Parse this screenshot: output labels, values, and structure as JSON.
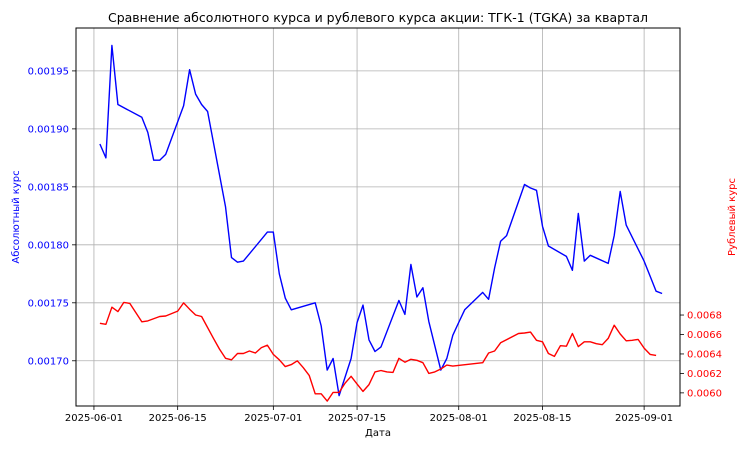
{
  "chart_data": {
    "type": "line",
    "title": "Сравнение абсолютного курса и рублевого курса акции: ТГК-1 (TGKA) за квартал",
    "xlabel": "Дата",
    "ylabel_left": "Абсолютный курс",
    "ylabel_right": "Рублевый курс",
    "x_ticks": [
      "2025-06-01",
      "2025-06-15",
      "2025-07-01",
      "2025-07-15",
      "2025-08-01",
      "2025-08-15",
      "2025-09-01"
    ],
    "y_left_ticks": [
      "0.00170",
      "0.00175",
      "0.00180",
      "0.00185",
      "0.00190",
      "0.00195"
    ],
    "y_right_ticks": [
      "0.0060",
      "0.0062",
      "0.0064",
      "0.0066",
      "0.0068"
    ],
    "x_range": [
      "2025-05-29",
      "2025-09-07"
    ],
    "ylim_left": [
      0.001661,
      0.001987
    ],
    "ylim_right": [
      0.005865,
      0.00975
    ],
    "grid": true,
    "colors": {
      "left_series": "#0000ff",
      "right_series": "#ff0000",
      "grid": "#b0b0b0"
    },
    "series": [
      {
        "axis": "left",
        "color": "#0000ff",
        "points": [
          [
            "2025-06-02",
            0.001887
          ],
          [
            "2025-06-03",
            0.001875
          ],
          [
            "2025-06-04",
            0.001972
          ],
          [
            "2025-06-05",
            0.001921
          ],
          [
            "2025-06-09",
            0.00191
          ],
          [
            "2025-06-10",
            0.001897
          ],
          [
            "2025-06-11",
            0.001873
          ],
          [
            "2025-06-12",
            0.001873
          ],
          [
            "2025-06-13",
            0.001878
          ],
          [
            "2025-06-16",
            0.00192
          ],
          [
            "2025-06-17",
            0.001951
          ],
          [
            "2025-06-18",
            0.00193
          ],
          [
            "2025-06-19",
            0.001921
          ],
          [
            "2025-06-20",
            0.001915
          ],
          [
            "2025-06-23",
            0.001833
          ],
          [
            "2025-06-24",
            0.001789
          ],
          [
            "2025-06-25",
            0.001785
          ],
          [
            "2025-06-26",
            0.001786
          ],
          [
            "2025-06-30",
            0.001811
          ],
          [
            "2025-07-01",
            0.001811
          ],
          [
            "2025-07-02",
            0.001775
          ],
          [
            "2025-07-03",
            0.001754
          ],
          [
            "2025-07-04",
            0.001744
          ],
          [
            "2025-07-08",
            0.00175
          ],
          [
            "2025-07-09",
            0.00173
          ],
          [
            "2025-07-10",
            0.001692
          ],
          [
            "2025-07-11",
            0.001702
          ],
          [
            "2025-07-12",
            0.00167
          ],
          [
            "2025-07-14",
            0.001702
          ],
          [
            "2025-07-15",
            0.001733
          ],
          [
            "2025-07-16",
            0.001748
          ],
          [
            "2025-07-17",
            0.001718
          ],
          [
            "2025-07-18",
            0.001708
          ],
          [
            "2025-07-19",
            0.001712
          ],
          [
            "2025-07-22",
            0.001752
          ],
          [
            "2025-07-23",
            0.00174
          ],
          [
            "2025-07-24",
            0.001783
          ],
          [
            "2025-07-25",
            0.001755
          ],
          [
            "2025-07-26",
            0.001763
          ],
          [
            "2025-07-27",
            0.001734
          ],
          [
            "2025-07-29",
            0.001692
          ],
          [
            "2025-07-30",
            0.001702
          ],
          [
            "2025-07-31",
            0.001722
          ],
          [
            "2025-08-01",
            0.001733
          ],
          [
            "2025-08-02",
            0.001744
          ],
          [
            "2025-08-05",
            0.001759
          ],
          [
            "2025-08-06",
            0.001753
          ],
          [
            "2025-08-07",
            0.00178
          ],
          [
            "2025-08-08",
            0.001803
          ],
          [
            "2025-08-09",
            0.001808
          ],
          [
            "2025-08-12",
            0.001852
          ],
          [
            "2025-08-13",
            0.001849
          ],
          [
            "2025-08-14",
            0.001847
          ],
          [
            "2025-08-15",
            0.001816
          ],
          [
            "2025-08-16",
            0.001799
          ],
          [
            "2025-08-19",
            0.00179
          ],
          [
            "2025-08-20",
            0.001778
          ],
          [
            "2025-08-21",
            0.001827
          ],
          [
            "2025-08-22",
            0.001786
          ],
          [
            "2025-08-23",
            0.001791
          ],
          [
            "2025-08-26",
            0.001784
          ],
          [
            "2025-08-27",
            0.001808
          ],
          [
            "2025-08-28",
            0.001846
          ],
          [
            "2025-08-29",
            0.001817
          ],
          [
            "2025-09-01",
            0.001786
          ],
          [
            "2025-09-02",
            0.001773
          ],
          [
            "2025-09-03",
            0.00176
          ],
          [
            "2025-09-04",
            0.001758
          ]
        ]
      },
      {
        "axis": "right",
        "color": "#ff0000",
        "points": [
          [
            "2025-06-02",
            0.006715
          ],
          [
            "2025-06-03",
            0.006705
          ],
          [
            "2025-06-04",
            0.00688
          ],
          [
            "2025-06-05",
            0.006835
          ],
          [
            "2025-06-06",
            0.00693
          ],
          [
            "2025-06-07",
            0.00692
          ],
          [
            "2025-06-09",
            0.00673
          ],
          [
            "2025-06-10",
            0.00674
          ],
          [
            "2025-06-12",
            0.006785
          ],
          [
            "2025-06-13",
            0.00679
          ],
          [
            "2025-06-15",
            0.00684
          ],
          [
            "2025-06-16",
            0.006925
          ],
          [
            "2025-06-17",
            0.00686
          ],
          [
            "2025-06-18",
            0.0068
          ],
          [
            "2025-06-19",
            0.006785
          ],
          [
            "2025-06-21",
            0.00656
          ],
          [
            "2025-06-22",
            0.00645
          ],
          [
            "2025-06-23",
            0.006355
          ],
          [
            "2025-06-24",
            0.00634
          ],
          [
            "2025-06-25",
            0.006405
          ],
          [
            "2025-06-26",
            0.006405
          ],
          [
            "2025-06-27",
            0.00643
          ],
          [
            "2025-06-28",
            0.00641
          ],
          [
            "2025-06-29",
            0.006465
          ],
          [
            "2025-06-30",
            0.00649
          ],
          [
            "2025-07-01",
            0.006395
          ],
          [
            "2025-07-02",
            0.00634
          ],
          [
            "2025-07-03",
            0.00627
          ],
          [
            "2025-07-04",
            0.00629
          ],
          [
            "2025-07-05",
            0.00633
          ],
          [
            "2025-07-06",
            0.00626
          ],
          [
            "2025-07-07",
            0.00618
          ],
          [
            "2025-07-08",
            0.00599
          ],
          [
            "2025-07-09",
            0.00599
          ],
          [
            "2025-07-10",
            0.005915
          ],
          [
            "2025-07-11",
            0.006005
          ],
          [
            "2025-07-12",
            0.006005
          ],
          [
            "2025-07-13",
            0.0061
          ],
          [
            "2025-07-14",
            0.00617
          ],
          [
            "2025-07-15",
            0.00609
          ],
          [
            "2025-07-16",
            0.006015
          ],
          [
            "2025-07-17",
            0.006085
          ],
          [
            "2025-07-18",
            0.006215
          ],
          [
            "2025-07-19",
            0.00623
          ],
          [
            "2025-07-20",
            0.006215
          ],
          [
            "2025-07-21",
            0.00621
          ],
          [
            "2025-07-22",
            0.006355
          ],
          [
            "2025-07-23",
            0.006315
          ],
          [
            "2025-07-24",
            0.006345
          ],
          [
            "2025-07-25",
            0.006335
          ],
          [
            "2025-07-26",
            0.00631
          ],
          [
            "2025-07-27",
            0.0062
          ],
          [
            "2025-07-28",
            0.006215
          ],
          [
            "2025-07-29",
            0.006245
          ],
          [
            "2025-07-30",
            0.006285
          ],
          [
            "2025-07-31",
            0.006275
          ],
          [
            "2025-08-05",
            0.00631
          ],
          [
            "2025-08-06",
            0.00641
          ],
          [
            "2025-08-07",
            0.00643
          ],
          [
            "2025-08-08",
            0.006515
          ],
          [
            "2025-08-11",
            0.00661
          ],
          [
            "2025-08-12",
            0.006615
          ],
          [
            "2025-08-13",
            0.006625
          ],
          [
            "2025-08-14",
            0.00654
          ],
          [
            "2025-08-15",
            0.006525
          ],
          [
            "2025-08-16",
            0.006405
          ],
          [
            "2025-08-17",
            0.006375
          ],
          [
            "2025-08-18",
            0.006485
          ],
          [
            "2025-08-19",
            0.00648
          ],
          [
            "2025-08-20",
            0.00661
          ],
          [
            "2025-08-21",
            0.006475
          ],
          [
            "2025-08-22",
            0.006525
          ],
          [
            "2025-08-23",
            0.006525
          ],
          [
            "2025-08-24",
            0.006505
          ],
          [
            "2025-08-25",
            0.006495
          ],
          [
            "2025-08-26",
            0.00656
          ],
          [
            "2025-08-27",
            0.006695
          ],
          [
            "2025-08-28",
            0.006605
          ],
          [
            "2025-08-29",
            0.006535
          ],
          [
            "2025-08-30",
            0.00654
          ],
          [
            "2025-08-31",
            0.00655
          ],
          [
            "2025-09-01",
            0.00646
          ],
          [
            "2025-09-02",
            0.006395
          ],
          [
            "2025-09-03",
            0.006385
          ]
        ]
      }
    ]
  }
}
